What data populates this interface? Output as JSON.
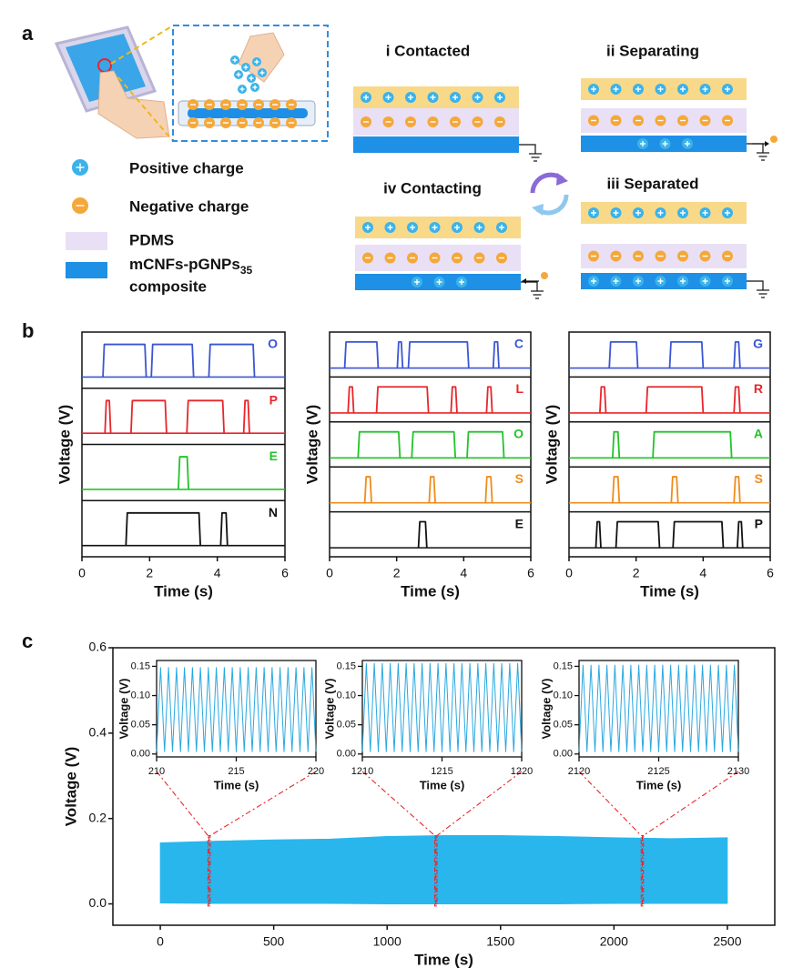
{
  "panel_labels": [
    "a",
    "b",
    "c"
  ],
  "panel_a": {
    "stages": [
      "i Contacted",
      "ii Separating",
      "iii Separated",
      "iv Contacting"
    ],
    "legend": {
      "positive": "Positive charge",
      "negative": "Negative charge",
      "pdms": "PDMS",
      "composite": "mCNFs-pGNPs",
      "composite_sub": "35",
      "composite_line2": "composite"
    }
  },
  "chart_data": [
    {
      "type": "pulse",
      "xlabel": "Time (s)",
      "ylabel": "Voltage (V)",
      "xlim": [
        0,
        6
      ],
      "xticks": [
        0,
        2,
        4,
        6
      ],
      "series": [
        {
          "name": "O",
          "color": "#3a56d4",
          "pulses": [
            [
              0.62,
              1.9
            ],
            [
              2.05,
              3.3
            ],
            [
              3.75,
              5.1
            ]
          ]
        },
        {
          "name": "P",
          "color": "#e8262a",
          "pulses": [
            [
              0.68,
              0.85
            ],
            [
              1.45,
              2.5
            ],
            [
              3.1,
              4.2
            ],
            [
              4.78,
              4.95
            ]
          ]
        },
        {
          "name": "E",
          "color": "#22c32a",
          "pulses": [
            [
              2.85,
              3.15
            ]
          ]
        },
        {
          "name": "N",
          "color": "#111111",
          "pulses": [
            [
              1.3,
              3.5
            ],
            [
              4.1,
              4.3
            ]
          ]
        }
      ]
    },
    {
      "type": "pulse",
      "xlabel": "Time (s)",
      "ylabel": "Voltage (V)",
      "xlim": [
        0,
        6
      ],
      "xticks": [
        0,
        2,
        4,
        6
      ],
      "series": [
        {
          "name": "C",
          "color": "#3a56d4",
          "pulses": [
            [
              0.45,
              1.45
            ],
            [
              2.02,
              2.18
            ],
            [
              2.35,
              4.15
            ],
            [
              4.88,
              5.05
            ]
          ]
        },
        {
          "name": "L",
          "color": "#e8262a",
          "pulses": [
            [
              0.55,
              0.72
            ],
            [
              1.4,
              2.95
            ],
            [
              3.62,
              3.8
            ],
            [
              4.68,
              4.85
            ]
          ]
        },
        {
          "name": "O",
          "color": "#22c32a",
          "pulses": [
            [
              0.85,
              2.1
            ],
            [
              2.45,
              3.75
            ],
            [
              4.1,
              5.2
            ]
          ]
        },
        {
          "name": "S",
          "color": "#f08c1c",
          "pulses": [
            [
              1.05,
              1.25
            ],
            [
              2.97,
              3.15
            ],
            [
              4.65,
              4.85
            ]
          ]
        },
        {
          "name": "E",
          "color": "#111111",
          "pulses": [
            [
              2.65,
              2.9
            ]
          ]
        }
      ]
    },
    {
      "type": "pulse",
      "xlabel": "Time (s)",
      "ylabel": "Voltage (V)",
      "xlim": [
        0,
        6
      ],
      "xticks": [
        0,
        2,
        4,
        6
      ],
      "series": [
        {
          "name": "G",
          "color": "#3a56d4",
          "pulses": [
            [
              1.2,
              2.05
            ],
            [
              3.0,
              4.0
            ],
            [
              4.92,
              5.1
            ]
          ]
        },
        {
          "name": "R",
          "color": "#e8262a",
          "pulses": [
            [
              0.92,
              1.1
            ],
            [
              2.3,
              4.0
            ],
            [
              4.92,
              5.1
            ]
          ]
        },
        {
          "name": "A",
          "color": "#22c32a",
          "pulses": [
            [
              1.3,
              1.5
            ],
            [
              2.5,
              4.85
            ]
          ]
        },
        {
          "name": "S",
          "color": "#f08c1c",
          "pulses": [
            [
              1.3,
              1.5
            ],
            [
              3.05,
              3.25
            ],
            [
              4.92,
              5.1
            ]
          ]
        },
        {
          "name": "P",
          "color": "#111111",
          "pulses": [
            [
              0.8,
              0.95
            ],
            [
              1.4,
              2.7
            ],
            [
              3.1,
              4.6
            ],
            [
              5.02,
              5.18
            ]
          ]
        }
      ]
    },
    {
      "type": "area",
      "xlabel": "Time (s)",
      "ylabel": "Voltage (V)",
      "color": "#29b6ec",
      "xlim": [
        -209,
        2709
      ],
      "xticks": [
        0,
        500,
        1000,
        1500,
        2000,
        2500
      ],
      "ylim": [
        -0.05,
        0.6
      ],
      "yticks": [
        {
          "value": 0,
          "label": "0.0"
        },
        {
          "value": 0.2,
          "label": "0.2"
        },
        {
          "value": 0.4,
          "label": "0.4"
        },
        {
          "value": 0.6,
          "label": "0.6"
        }
      ],
      "x": [
        0,
        250,
        500,
        750,
        1000,
        1250,
        1500,
        1750,
        2000,
        2250,
        2500
      ],
      "values": [
        0.143,
        0.147,
        0.15,
        0.152,
        0.158,
        0.16,
        0.16,
        0.158,
        0.155,
        0.153,
        0.155
      ],
      "lower_values": [
        0.002,
        0.001,
        0.001,
        0.001,
        0.0,
        0.0,
        0.0,
        0.0,
        0.001,
        0.001,
        0.001
      ]
    },
    {
      "type": "line",
      "xlabel": "Time (s)",
      "ylabel": "Voltage (V)",
      "color": "#29a8e0",
      "xlim": [
        210,
        220
      ],
      "xticks": [
        210,
        215,
        220
      ],
      "ylim": [
        -0.005,
        0.16
      ],
      "yticks": [
        {
          "value": 0,
          "label": "0.00"
        },
        {
          "value": 0.05,
          "label": "0.05"
        },
        {
          "value": 0.1,
          "label": "0.10"
        },
        {
          "value": 0.15,
          "label": "0.15"
        }
      ],
      "x": [
        210,
        210.25,
        210.5,
        210.75,
        211,
        211.25,
        211.5,
        211.75,
        212,
        212.25,
        212.5,
        212.75,
        213,
        213.25,
        213.5,
        213.75,
        214,
        214.25,
        214.5,
        214.75,
        215,
        215.25,
        215.5,
        215.75,
        216,
        216.25,
        216.5,
        216.75,
        217,
        217.25,
        217.5,
        217.75,
        218,
        218.25,
        218.5,
        218.75,
        219,
        219.25,
        219.5,
        219.75,
        220
      ],
      "values": [
        0.004,
        0.148,
        0.004,
        0.148,
        0.004,
        0.148,
        0.004,
        0.148,
        0.004,
        0.148,
        0.004,
        0.148,
        0.004,
        0.148,
        0.004,
        0.148,
        0.004,
        0.148,
        0.004,
        0.148,
        0.004,
        0.148,
        0.004,
        0.148,
        0.004,
        0.148,
        0.004,
        0.148,
        0.004,
        0.148,
        0.004,
        0.148,
        0.004,
        0.148,
        0.004,
        0.148,
        0.004,
        0.148,
        0.004,
        0.148,
        0.004
      ]
    },
    {
      "type": "line",
      "xlabel": "Time (s)",
      "ylabel": "Voltage (V)",
      "color": "#29a8e0",
      "xlim": [
        1210,
        1220
      ],
      "xticks": [
        1210,
        1215,
        1220
      ],
      "ylim": [
        -0.005,
        0.16
      ],
      "yticks": [
        {
          "value": 0,
          "label": "0.00"
        },
        {
          "value": 0.05,
          "label": "0.05"
        },
        {
          "value": 0.1,
          "label": "0.10"
        },
        {
          "value": 0.15,
          "label": "0.15"
        }
      ],
      "x": [
        1210,
        1210.25,
        1210.5,
        1210.75,
        1211,
        1211.25,
        1211.5,
        1211.75,
        1212,
        1212.25,
        1212.5,
        1212.75,
        1213,
        1213.25,
        1213.5,
        1213.75,
        1214,
        1214.25,
        1214.5,
        1214.75,
        1215,
        1215.25,
        1215.5,
        1215.75,
        1216,
        1216.25,
        1216.5,
        1216.75,
        1217,
        1217.25,
        1217.5,
        1217.75,
        1218,
        1218.25,
        1218.5,
        1218.75,
        1219,
        1219.25,
        1219.5,
        1219.75,
        1220
      ],
      "values": [
        0.004,
        0.155,
        0.004,
        0.155,
        0.004,
        0.155,
        0.004,
        0.155,
        0.004,
        0.155,
        0.004,
        0.155,
        0.004,
        0.155,
        0.004,
        0.155,
        0.004,
        0.155,
        0.004,
        0.155,
        0.004,
        0.155,
        0.004,
        0.155,
        0.004,
        0.155,
        0.004,
        0.155,
        0.004,
        0.155,
        0.004,
        0.155,
        0.004,
        0.155,
        0.004,
        0.155,
        0.004,
        0.155,
        0.004,
        0.155,
        0.004
      ]
    },
    {
      "type": "line",
      "xlabel": "Time (s)",
      "ylabel": "Voltage (V)",
      "color": "#29a8e0",
      "xlim": [
        2120,
        2130
      ],
      "xticks": [
        2120,
        2125,
        2130
      ],
      "ylim": [
        -0.005,
        0.16
      ],
      "yticks": [
        {
          "value": 0,
          "label": "0.00"
        },
        {
          "value": 0.05,
          "label": "0.05"
        },
        {
          "value": 0.1,
          "label": "0.10"
        },
        {
          "value": 0.15,
          "label": "0.15"
        }
      ],
      "x": [
        2120,
        2120.25,
        2120.5,
        2120.75,
        2121,
        2121.25,
        2121.5,
        2121.75,
        2122,
        2122.25,
        2122.5,
        2122.75,
        2123,
        2123.25,
        2123.5,
        2123.75,
        2124,
        2124.25,
        2124.5,
        2124.75,
        2125,
        2125.25,
        2125.5,
        2125.75,
        2126,
        2126.25,
        2126.5,
        2126.75,
        2127,
        2127.25,
        2127.5,
        2127.75,
        2128,
        2128.25,
        2128.5,
        2128.75,
        2129,
        2129.25,
        2129.5,
        2129.75,
        2130
      ],
      "values": [
        0.004,
        0.152,
        0.004,
        0.152,
        0.004,
        0.152,
        0.004,
        0.152,
        0.004,
        0.152,
        0.004,
        0.152,
        0.004,
        0.152,
        0.004,
        0.152,
        0.004,
        0.152,
        0.004,
        0.152,
        0.004,
        0.152,
        0.004,
        0.152,
        0.004,
        0.152,
        0.004,
        0.152,
        0.004,
        0.152,
        0.004,
        0.152,
        0.004,
        0.152,
        0.004,
        0.152,
        0.004,
        0.152,
        0.004,
        0.152,
        0.004
      ]
    }
  ]
}
